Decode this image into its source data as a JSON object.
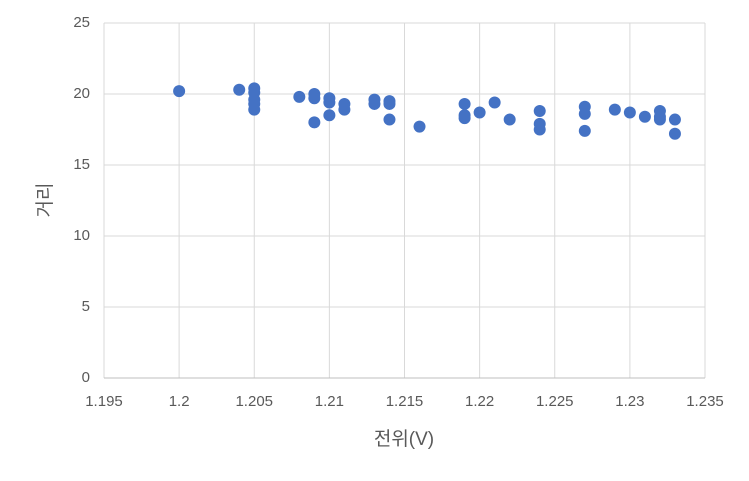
{
  "chart_data": {
    "type": "scatter",
    "x_label": "전위(V)",
    "y_label": "거리",
    "xlim": [
      1.195,
      1.235
    ],
    "xticks": [
      1.195,
      1.2,
      1.205,
      1.21,
      1.215,
      1.22,
      1.225,
      1.23,
      1.235
    ],
    "ylim": [
      0,
      25
    ],
    "yticks": [
      0,
      5,
      10,
      15,
      20,
      25
    ],
    "grid": true,
    "series": [
      {
        "color": "#4472c4",
        "x": [
          1.2,
          1.204,
          1.205,
          1.205,
          1.205,
          1.205,
          1.205,
          1.208,
          1.209,
          1.209,
          1.209,
          1.21,
          1.21,
          1.21,
          1.211,
          1.211,
          1.213,
          1.213,
          1.214,
          1.214,
          1.214,
          1.216,
          1.219,
          1.219,
          1.219,
          1.22,
          1.221,
          1.222,
          1.224,
          1.224,
          1.224,
          1.227,
          1.227,
          1.227,
          1.229,
          1.23,
          1.231,
          1.232,
          1.232,
          1.232,
          1.233,
          1.233
        ],
        "values": [
          20.2,
          20.3,
          20.4,
          20.1,
          19.6,
          19.3,
          18.9,
          19.8,
          20.0,
          19.7,
          18.0,
          19.7,
          19.4,
          18.5,
          19.3,
          18.9,
          19.6,
          19.3,
          19.5,
          19.3,
          18.2,
          17.7,
          19.3,
          18.5,
          18.3,
          18.7,
          19.4,
          18.2,
          18.8,
          17.9,
          17.5,
          19.1,
          18.6,
          17.4,
          18.9,
          18.7,
          18.4,
          18.8,
          18.4,
          18.2,
          18.2,
          17.2
        ]
      }
    ]
  }
}
